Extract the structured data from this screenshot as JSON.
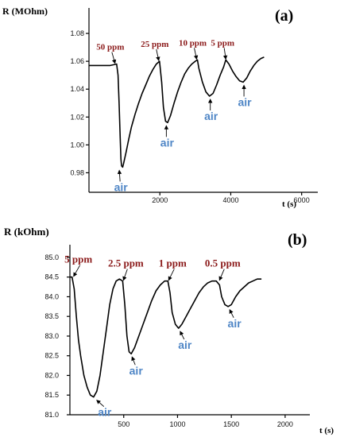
{
  "chart_data": [
    {
      "type": "line",
      "panel_label": "(a)",
      "ylabel": "R (MOhm)",
      "xlabel": "t (s)",
      "xlim": [
        0,
        6500
      ],
      "ylim": [
        0.966,
        1.096
      ],
      "x_ticks": [
        2000,
        4000,
        6000
      ],
      "x_tick_labels": [
        "2000",
        "4000",
        "6000"
      ],
      "y_ticks": [
        0.98,
        1.0,
        1.02,
        1.04,
        1.06,
        1.08
      ],
      "y_tick_labels": [
        "0.98",
        "1.00",
        "1.02",
        "1.04",
        "1.06",
        "1.08"
      ],
      "series": [
        {
          "x": [
            0,
            300,
            600,
            780,
            820,
            850,
            880,
            900,
            920,
            950,
            980,
            1050,
            1120,
            1200,
            1300,
            1400,
            1500,
            1600,
            1700,
            1800,
            1900,
            1990,
            2050,
            2100,
            2160,
            2220,
            2300,
            2400,
            2500,
            2600,
            2700,
            2800,
            2900,
            3000,
            3060,
            3100,
            3200,
            3300,
            3400,
            3500,
            3600,
            3700,
            3800,
            3860,
            3950,
            4050,
            4150,
            4250,
            4350,
            4450,
            4550,
            4650,
            4750,
            4850,
            4940
          ],
          "y": [
            1.057,
            1.057,
            1.057,
            1.058,
            1.05,
            1.03,
            1.005,
            0.99,
            0.985,
            0.984,
            0.987,
            0.995,
            1.004,
            1.013,
            1.022,
            1.03,
            1.037,
            1.043,
            1.049,
            1.054,
            1.058,
            1.06,
            1.045,
            1.027,
            1.017,
            1.016,
            1.021,
            1.03,
            1.038,
            1.045,
            1.051,
            1.055,
            1.058,
            1.06,
            1.061,
            1.055,
            1.045,
            1.038,
            1.035,
            1.037,
            1.043,
            1.05,
            1.056,
            1.061,
            1.058,
            1.053,
            1.049,
            1.046,
            1.045,
            1.048,
            1.053,
            1.057,
            1.06,
            1.062,
            1.063
          ]
        }
      ],
      "annotations": [
        {
          "text": "50 ppm",
          "kind": "gas",
          "x": 780,
          "y": 1.058
        },
        {
          "text": "25 ppm",
          "kind": "gas",
          "x": 1990,
          "y": 1.06
        },
        {
          "text": "10 ppm",
          "kind": "gas",
          "x": 3060,
          "y": 1.061
        },
        {
          "text": "5 ppm",
          "kind": "gas",
          "x": 3860,
          "y": 1.061
        },
        {
          "text": "air",
          "kind": "air",
          "x": 900,
          "y": 0.984
        },
        {
          "text": "air",
          "kind": "air",
          "x": 2160,
          "y": 1.016
        },
        {
          "text": "air",
          "kind": "air",
          "x": 3400,
          "y": 1.035
        },
        {
          "text": "air",
          "kind": "air",
          "x": 4350,
          "y": 1.045
        }
      ]
    },
    {
      "type": "line",
      "panel_label": "(b)",
      "ylabel": "R (kOhm)",
      "xlabel": "t (s)",
      "xlim": [
        0,
        2200
      ],
      "ylim": [
        81.0,
        85.1
      ],
      "x_ticks": [
        500,
        1000,
        1500,
        2000
      ],
      "x_tick_labels": [
        "500",
        "1000",
        "1500",
        "2000"
      ],
      "y_ticks": [
        81.0,
        81.5,
        82.0,
        82.5,
        83.0,
        83.5,
        84.0,
        84.5,
        85.0
      ],
      "y_tick_labels": [
        "81.0",
        "81.5",
        "82.0",
        "82.5",
        "83.0",
        "83.5",
        "84.0",
        "84.5",
        "85.0"
      ],
      "series": [
        {
          "x": [
            0,
            20,
            40,
            60,
            80,
            100,
            130,
            160,
            190,
            220,
            250,
            280,
            310,
            340,
            370,
            400,
            430,
            460,
            490,
            510,
            530,
            550,
            570,
            600,
            640,
            680,
            720,
            760,
            800,
            840,
            880,
            910,
            930,
            950,
            980,
            1010,
            1040,
            1080,
            1120,
            1160,
            1200,
            1240,
            1280,
            1320,
            1360,
            1390,
            1410,
            1440,
            1470,
            1500,
            1540,
            1580,
            1620,
            1660,
            1700,
            1740,
            1780
          ],
          "y": [
            84.5,
            84.5,
            84.2,
            83.5,
            82.9,
            82.5,
            82.0,
            81.7,
            81.5,
            81.45,
            81.6,
            82.0,
            82.6,
            83.2,
            83.8,
            84.2,
            84.4,
            84.45,
            84.4,
            83.8,
            83.0,
            82.6,
            82.55,
            82.7,
            83.0,
            83.3,
            83.6,
            83.9,
            84.15,
            84.3,
            84.4,
            84.4,
            84.1,
            83.6,
            83.3,
            83.2,
            83.3,
            83.5,
            83.7,
            83.9,
            84.1,
            84.25,
            84.35,
            84.4,
            84.4,
            84.3,
            84.0,
            83.8,
            83.75,
            83.8,
            84.0,
            84.15,
            84.25,
            84.35,
            84.4,
            84.45,
            84.45
          ]
        }
      ],
      "annotations": [
        {
          "text": "5 ppm",
          "kind": "gas",
          "x": 20,
          "y": 84.5
        },
        {
          "text": "2.5 ppm",
          "kind": "gas",
          "x": 490,
          "y": 84.4
        },
        {
          "text": "1 ppm",
          "kind": "gas",
          "x": 910,
          "y": 84.4
        },
        {
          "text": "0.5 ppm",
          "kind": "gas",
          "x": 1390,
          "y": 84.4
        },
        {
          "text": "air",
          "kind": "air",
          "x": 220,
          "y": 81.45
        },
        {
          "text": "air",
          "kind": "air",
          "x": 570,
          "y": 82.55
        },
        {
          "text": "air",
          "kind": "air",
          "x": 1010,
          "y": 83.2
        },
        {
          "text": "air",
          "kind": "air",
          "x": 1470,
          "y": 83.75
        }
      ]
    }
  ]
}
